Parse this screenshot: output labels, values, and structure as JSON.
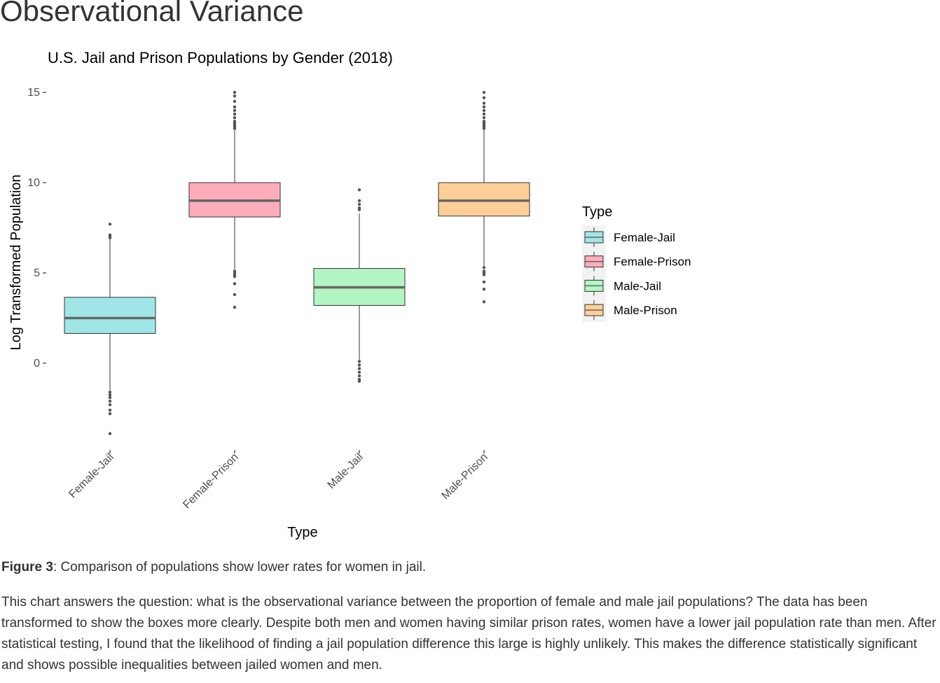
{
  "page": {
    "heading": "Observational Variance",
    "caption_label": "Figure 3",
    "caption_text": ": Comparison of populations show lower rates for women in jail.",
    "paragraph": "This chart answers the question: what is the observational variance between the proportion of female and male jail populations? The data has been transformed to show the boxes more clearly. Despite both men and women having similar prison rates, women have a lower jail population rate than men. After statistical testing, I found that the likelihood of finding a jail population difference this large is highly unlikely. This makes the difference statistically significant and shows possible inequalities between jailed women and men."
  },
  "chart_data": {
    "type": "box",
    "title": "U.S. Jail and Prison Populations by Gender (2018)",
    "xlabel": "Type",
    "ylabel": "Log Transformed Population",
    "ylim": [
      -4.8,
      15.5
    ],
    "yticks": [
      0,
      5,
      10,
      15
    ],
    "grid": false,
    "legend": {
      "title": "Type",
      "position": "right"
    },
    "categories": [
      "Female-Jail",
      "Female-Prison",
      "Male-Jail",
      "Male-Prison"
    ],
    "series": [
      {
        "name": "Female-Jail",
        "color": "#a0e6e6",
        "q1": 1.65,
        "median": 2.5,
        "q3": 3.65,
        "whisker_low": -1.5,
        "whisker_high": 6.9,
        "outliers": [
          7.7,
          7.1,
          7.0,
          6.95,
          -1.6,
          -1.75,
          -1.9,
          -2.1,
          -2.3,
          -2.6,
          -2.8,
          -3.9
        ]
      },
      {
        "name": "Female-Prison",
        "color": "#ffadbb",
        "q1": 8.1,
        "median": 9.0,
        "q3": 10.0,
        "whisker_low": 5.2,
        "whisker_high": 12.9,
        "outliers": [
          15.0,
          14.8,
          14.5,
          14.2,
          14.0,
          13.8,
          13.6,
          13.4,
          13.3,
          13.2,
          13.1,
          13.0,
          5.1,
          5.0,
          4.9,
          4.8,
          4.4,
          3.8,
          3.1
        ]
      },
      {
        "name": "Male-Jail",
        "color": "#b3f5c3",
        "q1": 3.2,
        "median": 4.2,
        "q3": 5.25,
        "whisker_low": 0.2,
        "whisker_high": 8.3,
        "outliers": [
          9.6,
          9.0,
          8.8,
          8.6,
          8.5,
          0.1,
          -0.1,
          -0.3,
          -0.5,
          -0.7,
          -0.9,
          -1.0
        ]
      },
      {
        "name": "Male-Prison",
        "color": "#ffcf99",
        "q1": 8.15,
        "median": 9.0,
        "q3": 10.0,
        "whisker_low": 5.4,
        "whisker_high": 12.9,
        "outliers": [
          15.0,
          14.7,
          14.4,
          14.2,
          14.0,
          13.8,
          13.6,
          13.4,
          13.3,
          13.2,
          13.1,
          13.0,
          5.3,
          5.1,
          5.0,
          4.9,
          4.5,
          4.1,
          3.4
        ]
      }
    ]
  }
}
